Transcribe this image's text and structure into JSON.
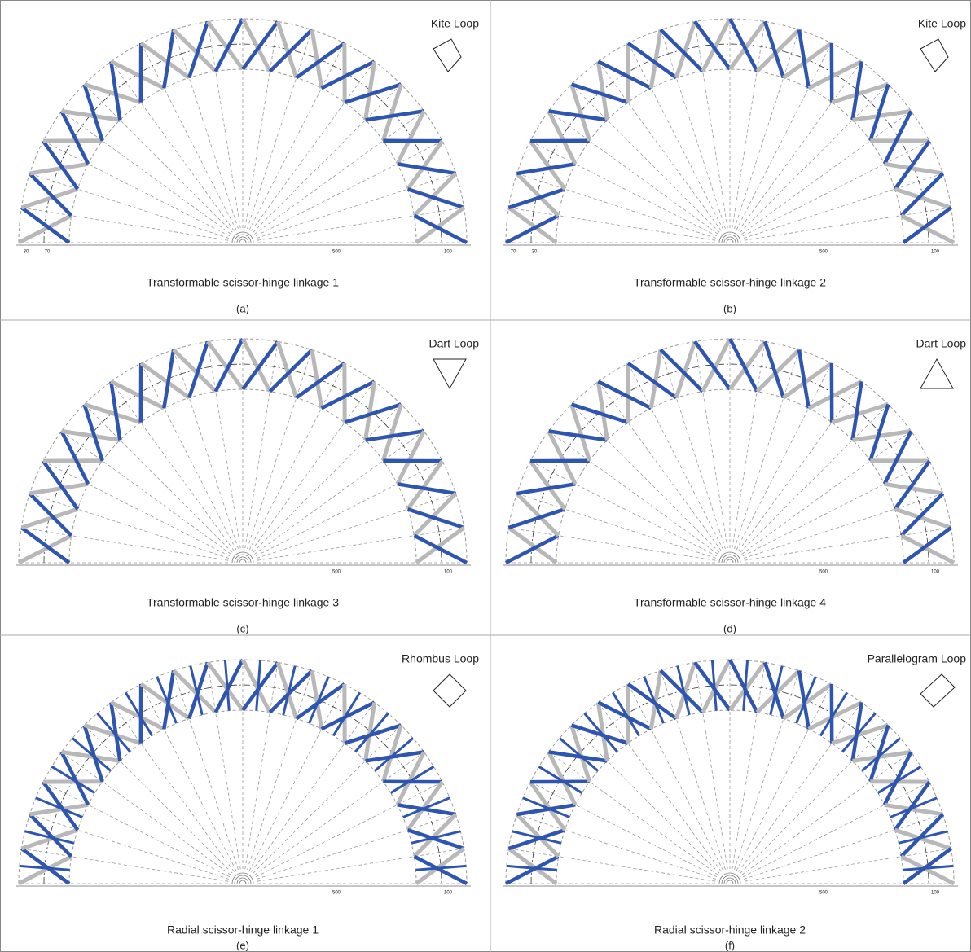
{
  "panels": [
    {
      "loop": "Kite Loop",
      "caption": "Transformable scissor-hinge linkage 1",
      "label": "(a)",
      "dimensions": [
        "30",
        "70",
        "500",
        "100"
      ]
    },
    {
      "loop": "Kite Loop",
      "caption": "Transformable scissor-hinge linkage 2",
      "label": "(b)",
      "dimensions": [
        "70",
        "30",
        "500",
        "100"
      ]
    },
    {
      "loop": "Dart Loop",
      "caption": "Transformable scissor-hinge linkage 3",
      "label": "(c)",
      "dimensions": [
        "500",
        "100"
      ]
    },
    {
      "loop": "Dart Loop",
      "caption": "Transformable scissor-hinge linkage 4",
      "label": "(d)",
      "dimensions": [
        "500",
        "100"
      ]
    },
    {
      "loop": "Rhombus Loop",
      "caption": "Radial scissor-hinge linkage 1",
      "label": "(e)",
      "dimensions": [
        "500",
        "100"
      ]
    },
    {
      "loop": "Parallelogram Loop",
      "caption": "Radial scissor-hinge linkage 2",
      "label": "(f)",
      "dimensions": [
        "500",
        "100"
      ]
    }
  ]
}
